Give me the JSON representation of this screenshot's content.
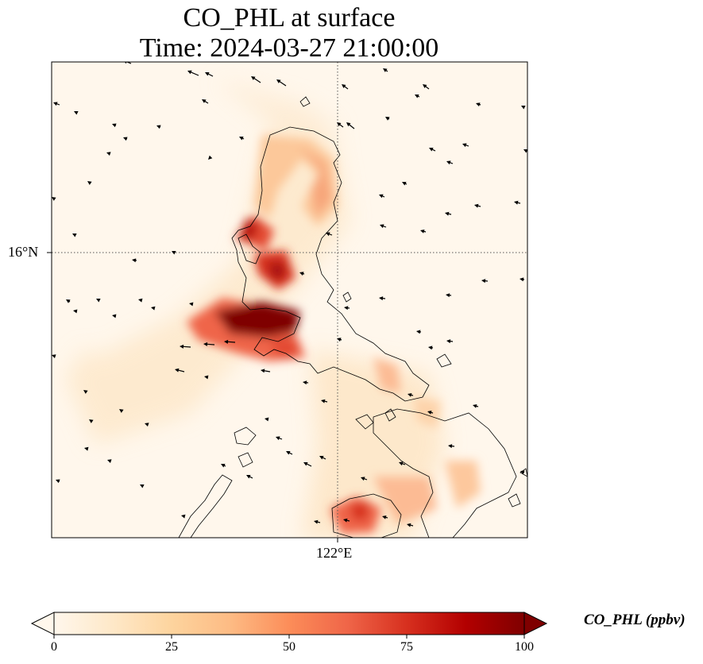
{
  "figure": {
    "title_line1": "CO_PHL at surface",
    "title_line2": "Time: 2024-03-27 21:00:00",
    "variable": "CO_PHL",
    "level": "surface",
    "time": "2024-03-27 21:00:00"
  },
  "axes": {
    "lat_tick_label": "16°N",
    "lon_tick_label": "122°E",
    "gridlines": "dotted"
  },
  "colorbar": {
    "label": "CO_PHL (ppbv)",
    "ticks": [
      "0",
      "25",
      "50",
      "75",
      "100"
    ],
    "range": [
      0,
      100
    ],
    "extend": "both",
    "colormap": "OrRd",
    "colors": [
      "#fff7ec",
      "#fee8c8",
      "#fdd49e",
      "#fdbb84",
      "#fc8d59",
      "#ef6548",
      "#d7301f",
      "#b30000",
      "#7f0000"
    ]
  },
  "colors": {
    "coastline": "#000000",
    "wind_arrow": "#000000",
    "gridline": "#555555"
  }
}
